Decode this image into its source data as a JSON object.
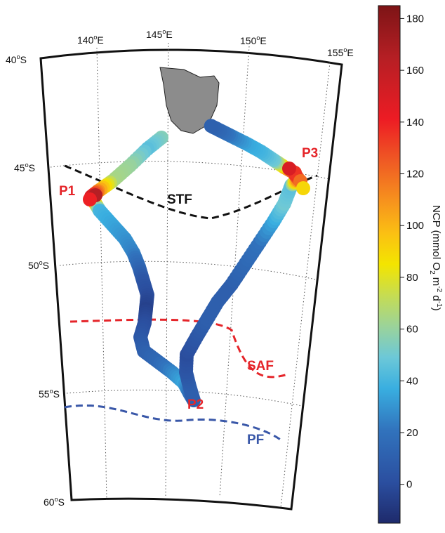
{
  "map": {
    "lon_range": [
      140,
      155
    ],
    "lat_range": [
      -60,
      -40
    ],
    "lon_labels": [
      {
        "lon": 140,
        "deg": "140",
        "sup": "o",
        "hem": "E"
      },
      {
        "lon": 145,
        "deg": "145",
        "sup": "o",
        "hem": "E"
      },
      {
        "lon": 150,
        "deg": "150",
        "sup": "o",
        "hem": "E"
      },
      {
        "lon": 155,
        "deg": "155",
        "sup": "o",
        "hem": "E"
      }
    ],
    "lat_labels": [
      {
        "lat": -40,
        "deg": "40",
        "sup": "o",
        "hem": "S"
      },
      {
        "lat": -45,
        "deg": "45",
        "sup": "o",
        "hem": "S"
      },
      {
        "lat": -50,
        "deg": "50",
        "sup": "o",
        "hem": "S"
      },
      {
        "lat": -55,
        "deg": "55",
        "sup": "o",
        "hem": "S"
      },
      {
        "lat": -60,
        "deg": "60",
        "sup": "o",
        "hem": "S"
      }
    ],
    "land": {
      "name": "Tasmania",
      "color": "#8c8c8c"
    },
    "fronts": [
      {
        "id": "stf",
        "label": "STF",
        "color": "#111111"
      },
      {
        "id": "saf",
        "label": "SAF",
        "color": "#e5252a"
      },
      {
        "id": "pf",
        "label": "PF",
        "color": "#3957a8"
      }
    ],
    "sites": [
      {
        "id": "p1",
        "label": "P1",
        "color": "#e5252a"
      },
      {
        "id": "p2",
        "label": "P2",
        "color": "#e5252a"
      },
      {
        "id": "p3",
        "label": "P3",
        "color": "#e5252a"
      }
    ]
  },
  "colorbar": {
    "title_prefix": "NCP (mmol O",
    "title_sub": "2",
    "title_mid": " m",
    "title_sup1": "-2",
    "title_mid2": " d",
    "title_sup2": "-1",
    "title_suffix": ")",
    "min": -15,
    "max": 185,
    "ticks": [
      {
        "value": 0,
        "label": "0"
      },
      {
        "value": 20,
        "label": "20"
      },
      {
        "value": 40,
        "label": "40"
      },
      {
        "value": 60,
        "label": "60"
      },
      {
        "value": 80,
        "label": "80"
      },
      {
        "value": 100,
        "label": "100"
      },
      {
        "value": 120,
        "label": "120"
      },
      {
        "value": 140,
        "label": "140"
      },
      {
        "value": 160,
        "label": "160"
      },
      {
        "value": 180,
        "label": "180"
      }
    ],
    "colormap": "jet"
  }
}
